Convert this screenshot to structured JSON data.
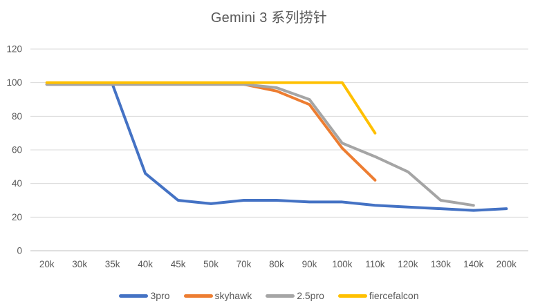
{
  "chart_data": {
    "type": "line",
    "title": "Gemini 3 系列捞针",
    "xlabel": "",
    "ylabel": "",
    "categories": [
      "20k",
      "30k",
      "35k",
      "40k",
      "45k",
      "50k",
      "70k",
      "80k",
      "90k",
      "100k",
      "110k",
      "120k",
      "130k",
      "140k",
      "200k"
    ],
    "series": [
      {
        "name": "3pro",
        "color": "#4472C4",
        "values": [
          99,
          99,
          99,
          46,
          30,
          28,
          30,
          30,
          29,
          29,
          27,
          26,
          25,
          24,
          25
        ]
      },
      {
        "name": "skyhawk",
        "color": "#ED7D31",
        "values": [
          99,
          99,
          99,
          99,
          99,
          99,
          99,
          95,
          87,
          61,
          42,
          null,
          null,
          null,
          null
        ]
      },
      {
        "name": "2.5pro",
        "color": "#A5A5A5",
        "values": [
          99,
          99,
          99,
          99,
          99,
          99,
          99,
          97,
          90,
          64,
          56,
          47,
          30,
          27,
          null
        ]
      },
      {
        "name": "fiercefalcon",
        "color": "#FFC000",
        "values": [
          100,
          100,
          100,
          100,
          100,
          100,
          100,
          100,
          100,
          100,
          70,
          null,
          null,
          null,
          null
        ]
      }
    ],
    "ylim": [
      0,
      120
    ],
    "ytick_step": 20,
    "yticks": [
      0,
      20,
      40,
      60,
      80,
      100,
      120
    ],
    "grid": true,
    "legend_position": "bottom",
    "line_width": 4
  },
  "colors": {
    "background": "#FFFFFF",
    "text": "#595959",
    "gridline": "#D9D9D9",
    "axis_line": "#BFBFBF"
  }
}
